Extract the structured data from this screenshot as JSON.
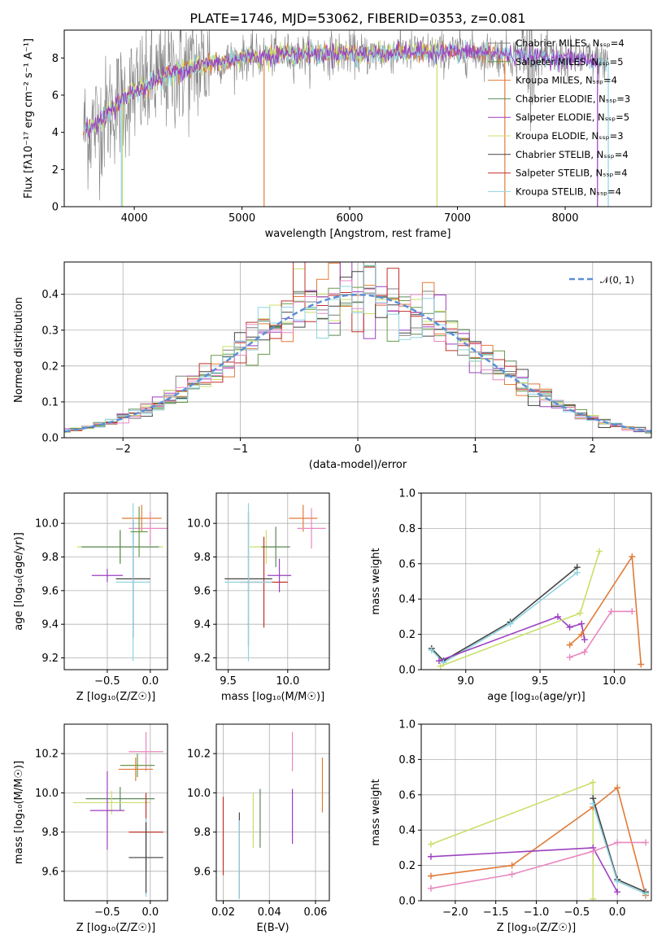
{
  "colors": {
    "Chabrier MILES": "#7f7f7f",
    "Salpeter MILES": "#6a9a4a",
    "Kroupa MILES": "#e07b39",
    "Chabrier ELODIE": "#5a8a5a",
    "Salpeter ELODIE": "#9b3fbf",
    "Kroupa ELODIE": "#c8e06a",
    "Chabrier STELIB": "#444444",
    "Salpeter STELIB": "#c0302a",
    "Kroupa STELIB": "#8fd3e0",
    "pink": "#e888c0",
    "normal": "#5b8fd6"
  },
  "chart_data": [
    {
      "id": "spectrum",
      "type": "line",
      "title": "PLATE=1746, MJD=53062, FIBERID=0353, z=0.081",
      "xlabel": "wavelength [Angstrom, rest frame]",
      "ylabel": "Flux [fλ10⁻¹⁷ erg cm⁻² s⁻¹ A⁻¹]",
      "xlim": [
        3350,
        8800
      ],
      "ylim": [
        0,
        9.5
      ],
      "xticks": [
        4000,
        5000,
        6000,
        7000,
        8000
      ],
      "yticks": [
        0,
        2,
        4,
        6,
        8
      ],
      "legend": [
        "Chabrier MILES, Nₛₛₚ=4",
        "Salpeter MILES, Nₛₛₚ=5",
        "Kroupa MILES, Nₛₛₚ=4",
        "Chabrier ELODIE, Nₛₛₚ=3",
        "Salpeter ELODIE, Nₛₛₚ=5",
        "Kroupa ELODIE, Nₛₛₚ=3",
        "Chabrier STELIB, Nₛₛₚ=4",
        "Salpeter STELIB, Nₛₛₚ=4",
        "Kroupa STELIB, Nₛₛₚ=4"
      ],
      "legend_placement": "upper right",
      "x": [
        3500,
        3600,
        3700,
        3800,
        3900,
        4000,
        4100,
        4200,
        4300,
        4400,
        4500,
        4600,
        4800,
        5000,
        5200,
        5400,
        5600,
        5800,
        6000,
        6200,
        6400,
        6600,
        6800,
        7000,
        7200,
        7400,
        7600,
        7800,
        8000,
        8200,
        8400
      ],
      "y": [
        4.0,
        4.3,
        4.6,
        5.4,
        5.8,
        6.2,
        6.4,
        6.8,
        7.1,
        7.3,
        7.4,
        7.6,
        7.8,
        8.0,
        8.1,
        8.2,
        8.2,
        8.25,
        8.25,
        8.2,
        8.3,
        8.3,
        8.3,
        8.3,
        8.3,
        8.2,
        8.1,
        8.0,
        7.95,
        7.9,
        7.85
      ],
      "grid": false
    },
    {
      "id": "residuals",
      "type": "histogram",
      "xlabel": "(data-model)/error",
      "ylabel": "Normed distribution",
      "xlim": [
        -2.5,
        2.5
      ],
      "ylim": [
        0,
        0.49
      ],
      "xticks": [
        -2,
        -1,
        0,
        1,
        2
      ],
      "yticks": [
        0.0,
        0.1,
        0.2,
        0.3,
        0.4
      ],
      "legend": [
        "𝒩(0, 1)"
      ],
      "legend_placement": "upper right",
      "bin_width": 0.1,
      "grid": true
    },
    {
      "id": "age-vs-Z",
      "type": "errorbar",
      "xlabel": "Z [log₁₀(Z/Z☉)]",
      "ylabel": "age  [log₁₀(age/yr)]",
      "xlim": [
        -1.0,
        0.2
      ],
      "ylim": [
        9.13,
        10.18
      ],
      "xticks": [
        -0.5,
        0.0
      ],
      "yticks": [
        9.2,
        9.4,
        9.6,
        9.8,
        10.0
      ],
      "grid": true,
      "points": [
        {
          "x": -0.1,
          "y": 10.03,
          "xerr": 0.23,
          "yerr": 0.08,
          "color": "Kroupa MILES"
        },
        {
          "x": 0.0,
          "y": 9.97,
          "xerr": 0.25,
          "yerr": 0.1,
          "color": "pink"
        },
        {
          "x": -0.35,
          "y": 9.86,
          "xerr": 0.5,
          "yerr": 0.1,
          "color": "Kroupa ELODIE"
        },
        {
          "x": -0.35,
          "y": 9.86,
          "xerr": 0.45,
          "yerr": 0.1,
          "color": "Chabrier ELODIE"
        },
        {
          "x": -0.5,
          "y": 9.69,
          "xerr": 0.18,
          "yerr": 0.04,
          "color": "Salpeter ELODIE"
        },
        {
          "x": -0.2,
          "y": 9.67,
          "xerr": 0.2,
          "yerr": 0.35,
          "color": "Chabrier STELIB"
        },
        {
          "x": -0.2,
          "y": 9.65,
          "xerr": 0.2,
          "yerr": 0.47,
          "color": "Kroupa STELIB"
        },
        {
          "x": -0.13,
          "y": 9.95,
          "xerr": 0.1,
          "yerr": 0.15,
          "color": "Salpeter MILES"
        }
      ]
    },
    {
      "id": "age-vs-mass",
      "type": "errorbar",
      "xlabel": "mass [log₁₀(M/M☉)]",
      "ylabel": "",
      "xlim": [
        9.4,
        10.35
      ],
      "ylim": [
        9.13,
        10.18
      ],
      "xticks": [
        9.5,
        10.0
      ],
      "yticks": [
        9.2,
        9.4,
        9.6,
        9.8,
        10.0
      ],
      "grid": true,
      "points": [
        {
          "x": 10.13,
          "y": 10.03,
          "xerr": 0.12,
          "yerr": 0.08,
          "color": "Kroupa MILES"
        },
        {
          "x": 10.2,
          "y": 9.97,
          "xerr": 0.12,
          "yerr": 0.12,
          "color": "pink"
        },
        {
          "x": 9.82,
          "y": 9.86,
          "xerr": 0.14,
          "yerr": 0.1,
          "color": "Kroupa ELODIE"
        },
        {
          "x": 9.9,
          "y": 9.86,
          "xerr": 0.12,
          "yerr": 0.12,
          "color": "Chabrier ELODIE"
        },
        {
          "x": 9.93,
          "y": 9.69,
          "xerr": 0.1,
          "yerr": 0.1,
          "color": "Salpeter ELODIE"
        },
        {
          "x": 9.8,
          "y": 9.65,
          "xerr": 0.2,
          "yerr": 0.27,
          "color": "Salpeter STELIB"
        },
        {
          "x": 9.67,
          "y": 9.67,
          "xerr": 0.2,
          "yerr": 0.4,
          "color": "Chabrier STELIB"
        },
        {
          "x": 9.67,
          "y": 9.65,
          "xerr": 0.2,
          "yerr": 0.47,
          "color": "Kroupa STELIB"
        }
      ]
    },
    {
      "id": "weight-vs-age",
      "type": "line",
      "xlabel": "age  [log₁₀(age/yr)]",
      "ylabel": "mass weight",
      "xlim": [
        8.7,
        10.25
      ],
      "ylim": [
        0.0,
        1.0
      ],
      "xticks": [
        9.0,
        9.5,
        10.0
      ],
      "yticks": [
        0.0,
        0.2,
        0.4,
        0.6,
        0.8,
        1.0
      ],
      "grid": true,
      "series": [
        {
          "color": "Chabrier STELIB",
          "x": [
            8.77,
            8.85,
            9.3,
            9.75
          ],
          "y": [
            0.12,
            0.05,
            0.27,
            0.58
          ]
        },
        {
          "color": "Kroupa STELIB",
          "x": [
            8.77,
            8.85,
            9.3,
            9.75
          ],
          "y": [
            0.11,
            0.04,
            0.26,
            0.55
          ]
        },
        {
          "color": "Salpeter ELODIE",
          "x": [
            8.82,
            9.62,
            9.7,
            9.78,
            9.8
          ],
          "y": [
            0.05,
            0.3,
            0.24,
            0.26,
            0.17
          ]
        },
        {
          "color": "Kroupa ELODIE",
          "x": [
            8.83,
            9.77,
            9.9
          ],
          "y": [
            0.02,
            0.32,
            0.67
          ]
        },
        {
          "color": "Kroupa MILES",
          "x": [
            9.7,
            9.78,
            10.12,
            10.18
          ],
          "y": [
            0.14,
            0.2,
            0.64,
            0.03
          ]
        },
        {
          "color": "pink",
          "x": [
            9.7,
            9.8,
            9.98,
            10.12
          ],
          "y": [
            0.07,
            0.1,
            0.33,
            0.33
          ]
        }
      ]
    },
    {
      "id": "mass-vs-Z",
      "type": "errorbar",
      "xlabel": "Z [log₁₀(Z/Z☉)]",
      "ylabel": "mass [log₁₀(M/M☉)]",
      "xlim": [
        -1.0,
        0.2
      ],
      "ylim": [
        9.45,
        10.35
      ],
      "xticks": [
        -0.5,
        0.0
      ],
      "yticks": [
        9.6,
        9.8,
        10.0,
        10.2
      ],
      "grid": true,
      "points": [
        {
          "x": -0.05,
          "y": 10.21,
          "xerr": 0.2,
          "yerr": 0.1,
          "color": "pink"
        },
        {
          "x": -0.15,
          "y": 10.14,
          "xerr": 0.2,
          "yerr": 0.06,
          "color": "Salpeter MILES"
        },
        {
          "x": -0.17,
          "y": 10.12,
          "xerr": 0.2,
          "yerr": 0.06,
          "color": "Kroupa MILES"
        },
        {
          "x": -0.35,
          "y": 9.97,
          "xerr": 0.4,
          "yerr": 0.06,
          "color": "Chabrier ELODIE"
        },
        {
          "x": -0.45,
          "y": 9.95,
          "xerr": 0.45,
          "yerr": 0.06,
          "color": "Kroupa ELODIE"
        },
        {
          "x": -0.5,
          "y": 9.91,
          "xerr": 0.2,
          "yerr": 0.2,
          "color": "Salpeter ELODIE"
        },
        {
          "x": -0.05,
          "y": 9.8,
          "xerr": 0.2,
          "yerr": 0.2,
          "color": "Salpeter STELIB"
        },
        {
          "x": -0.05,
          "y": 9.67,
          "xerr": 0.2,
          "yerr": 0.2,
          "color": "Kroupa STELIB"
        },
        {
          "x": -0.05,
          "y": 9.67,
          "xerr": 0.2,
          "yerr": 0.18,
          "color": "Chabrier STELIB"
        }
      ]
    },
    {
      "id": "mass-vs-EBV",
      "type": "errorbar",
      "xlabel": "E(B-V)",
      "ylabel": "",
      "xlim": [
        0.017,
        0.066
      ],
      "ylim": [
        9.45,
        10.35
      ],
      "xticks": [
        0.02,
        0.04,
        0.06
      ],
      "yticks": [
        9.6,
        9.8,
        10.0,
        10.2
      ],
      "grid": true,
      "points": [
        {
          "x": 0.02,
          "y": 9.78,
          "xerr": 0,
          "yerr": 0.2,
          "color": "Salpeter STELIB"
        },
        {
          "x": 0.027,
          "y": 9.68,
          "xerr": 0,
          "yerr": 0.22,
          "color": "Chabrier STELIB"
        },
        {
          "x": 0.027,
          "y": 9.66,
          "xerr": 0,
          "yerr": 0.2,
          "color": "Kroupa STELIB"
        },
        {
          "x": 0.033,
          "y": 9.86,
          "xerr": 0,
          "yerr": 0.14,
          "color": "Kroupa ELODIE"
        },
        {
          "x": 0.036,
          "y": 9.87,
          "xerr": 0,
          "yerr": 0.15,
          "color": "Chabrier ELODIE"
        },
        {
          "x": 0.05,
          "y": 9.88,
          "xerr": 0,
          "yerr": 0.14,
          "color": "Salpeter ELODIE"
        },
        {
          "x": 0.05,
          "y": 10.21,
          "xerr": 0,
          "yerr": 0.1,
          "color": "pink"
        },
        {
          "x": 0.063,
          "y": 10.04,
          "xerr": 0,
          "yerr": 0.14,
          "color": "Kroupa MILES"
        }
      ]
    },
    {
      "id": "weight-vs-Z",
      "type": "line",
      "xlabel": "Z [log₁₀(Z/Z☉)]",
      "ylabel": "mass weight",
      "xlim": [
        -2.42,
        0.42
      ],
      "ylim": [
        0.0,
        1.0
      ],
      "xticks": [
        -2.0,
        -1.5,
        -1.0,
        -0.5,
        0.0
      ],
      "yticks": [
        0.0,
        0.2,
        0.4,
        0.6,
        0.8,
        1.0
      ],
      "grid": true,
      "series": [
        {
          "color": "Kroupa ELODIE",
          "x": [
            -2.3,
            -0.3,
            -0.3
          ],
          "y": [
            0.32,
            0.67,
            0.01
          ]
        },
        {
          "color": "Kroupa MILES",
          "x": [
            -2.3,
            -1.3,
            -0.3,
            0.0,
            0.35
          ],
          "y": [
            0.14,
            0.2,
            0.53,
            0.64,
            0.03
          ]
        },
        {
          "color": "Salpeter ELODIE",
          "x": [
            -2.3,
            -0.3,
            0.0
          ],
          "y": [
            0.25,
            0.3,
            0.05
          ]
        },
        {
          "color": "pink",
          "x": [
            -2.3,
            -1.3,
            -0.3,
            0.0,
            0.35
          ],
          "y": [
            0.07,
            0.15,
            0.28,
            0.33,
            0.33
          ]
        },
        {
          "color": "Chabrier STELIB",
          "x": [
            -0.3,
            0.0,
            0.35
          ],
          "y": [
            0.58,
            0.12,
            0.05
          ]
        },
        {
          "color": "Kroupa STELIB",
          "x": [
            -0.3,
            0.0,
            0.35
          ],
          "y": [
            0.55,
            0.11,
            0.04
          ]
        }
      ]
    }
  ]
}
